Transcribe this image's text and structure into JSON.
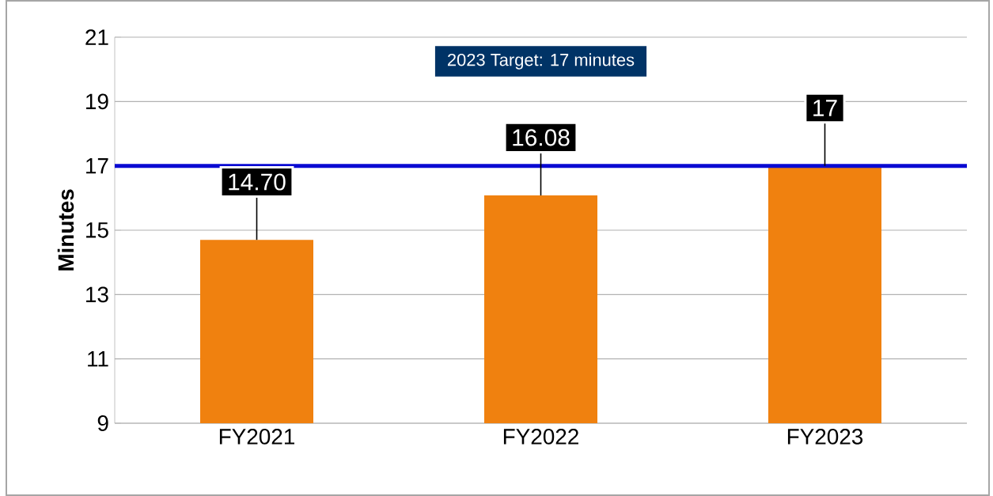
{
  "chart_data": {
    "type": "bar",
    "ylabel": "Minutes",
    "categories": [
      "FY2021",
      "FY2022",
      "FY2023"
    ],
    "values": [
      14.7,
      16.08,
      17
    ],
    "value_labels": [
      "14.70",
      "16.08",
      "17"
    ],
    "color": "#f0810f",
    "ylim": [
      9,
      21
    ],
    "yticks": [
      9,
      11,
      13,
      15,
      17,
      19,
      21
    ],
    "grid": "y",
    "ref_lines": [
      {
        "axis": "y",
        "value": 17,
        "color": "#0a0ad2"
      }
    ],
    "annotations": [
      "2023 Target: 17 minutes"
    ]
  }
}
